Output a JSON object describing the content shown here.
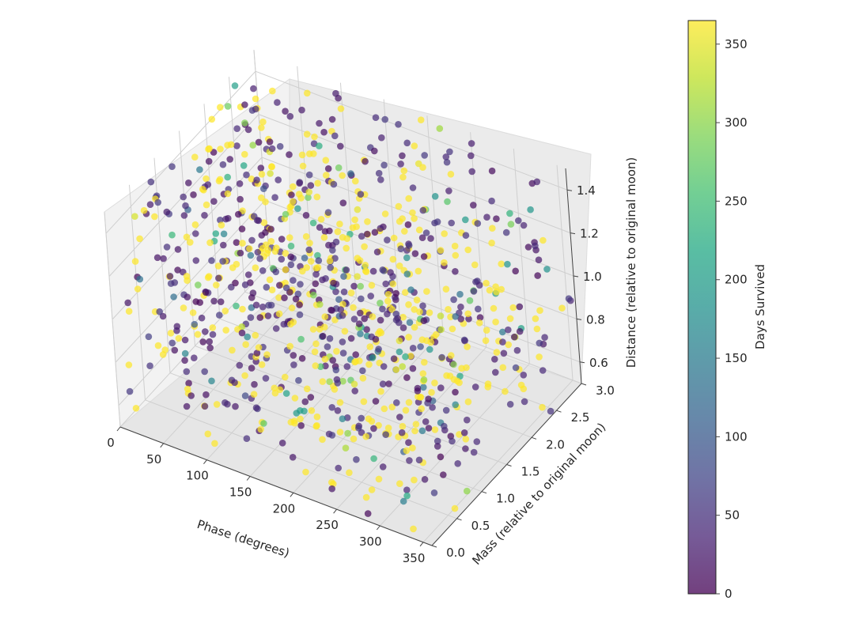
{
  "chart_data": {
    "type": "scatter3d",
    "title": "",
    "xlabel": "Phase (degrees)",
    "ylabel": "Mass (relative to original moon)",
    "zlabel": "Distance (relative to original moon)",
    "xlim": [
      0,
      360
    ],
    "ylim": [
      0,
      3
    ],
    "zlim": [
      0.5,
      1.5
    ],
    "xticks": [
      "0",
      "50",
      "100",
      "150",
      "200",
      "250",
      "300",
      "350"
    ],
    "yticks": [
      "0.0",
      "0.5",
      "1.0",
      "1.5",
      "2.0",
      "2.5",
      "3.0"
    ],
    "zticks": [
      "0.6",
      "0.8",
      "1.0",
      "1.2",
      "1.4"
    ],
    "colormap": "viridis",
    "alpha": 0.7,
    "point_count": 1000,
    "color_value_range": [
      0,
      365
    ],
    "colorbar": {
      "label": "Days Survived",
      "ticks": [
        "0",
        "50",
        "100",
        "150",
        "200",
        "250",
        "300",
        "350"
      ]
    },
    "grid": true
  }
}
